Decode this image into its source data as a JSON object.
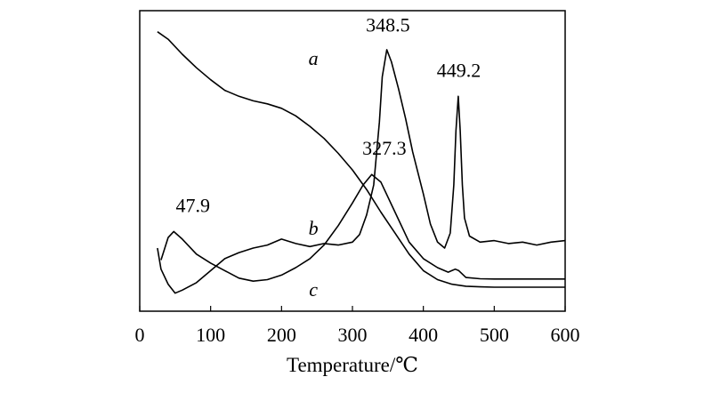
{
  "chart_data": {
    "type": "line",
    "xlabel": "Temperature/℃",
    "ylabel": "",
    "xlim": [
      0,
      600
    ],
    "x_ticks": [
      0,
      100,
      200,
      300,
      400,
      500,
      600
    ],
    "y_ticks": [],
    "grid": false,
    "legend": "none",
    "series": [
      {
        "name": "a",
        "color": "#000000",
        "points": [
          [
            25,
            0.93
          ],
          [
            40,
            0.905
          ],
          [
            60,
            0.855
          ],
          [
            80,
            0.81
          ],
          [
            100,
            0.77
          ],
          [
            120,
            0.735
          ],
          [
            140,
            0.715
          ],
          [
            160,
            0.7
          ],
          [
            180,
            0.69
          ],
          [
            200,
            0.675
          ],
          [
            220,
            0.65
          ],
          [
            240,
            0.615
          ],
          [
            260,
            0.575
          ],
          [
            280,
            0.525
          ],
          [
            300,
            0.47
          ],
          [
            320,
            0.405
          ],
          [
            340,
            0.33
          ],
          [
            360,
            0.26
          ],
          [
            380,
            0.19
          ],
          [
            400,
            0.135
          ],
          [
            420,
            0.105
          ],
          [
            440,
            0.09
          ],
          [
            460,
            0.083
          ],
          [
            480,
            0.081
          ],
          [
            500,
            0.08
          ],
          [
            600,
            0.08
          ]
        ]
      },
      {
        "name": "b",
        "color": "#000000",
        "points": [
          [
            25,
            0.21
          ],
          [
            30,
            0.14
          ],
          [
            40,
            0.09
          ],
          [
            50,
            0.06
          ],
          [
            60,
            0.07
          ],
          [
            80,
            0.095
          ],
          [
            100,
            0.135
          ],
          [
            120,
            0.175
          ],
          [
            140,
            0.195
          ],
          [
            160,
            0.21
          ],
          [
            180,
            0.22
          ],
          [
            200,
            0.24
          ],
          [
            220,
            0.225
          ],
          [
            240,
            0.215
          ],
          [
            260,
            0.225
          ],
          [
            280,
            0.22
          ],
          [
            300,
            0.23
          ],
          [
            310,
            0.255
          ],
          [
            320,
            0.32
          ],
          [
            330,
            0.42
          ],
          [
            338,
            0.63
          ],
          [
            342,
            0.78
          ],
          [
            348.5,
            0.87
          ],
          [
            355,
            0.83
          ],
          [
            365,
            0.74
          ],
          [
            375,
            0.64
          ],
          [
            385,
            0.53
          ],
          [
            400,
            0.39
          ],
          [
            410,
            0.29
          ],
          [
            420,
            0.23
          ],
          [
            430,
            0.21
          ],
          [
            438,
            0.26
          ],
          [
            443,
            0.42
          ],
          [
            446,
            0.6
          ],
          [
            449.2,
            0.715
          ],
          [
            452,
            0.6
          ],
          [
            455,
            0.42
          ],
          [
            458,
            0.31
          ],
          [
            465,
            0.25
          ],
          [
            480,
            0.23
          ],
          [
            500,
            0.235
          ],
          [
            520,
            0.225
          ],
          [
            540,
            0.23
          ],
          [
            560,
            0.22
          ],
          [
            580,
            0.23
          ],
          [
            600,
            0.235
          ]
        ]
      },
      {
        "name": "c",
        "color": "#000000",
        "points": [
          [
            30,
            0.17
          ],
          [
            40,
            0.245
          ],
          [
            47.9,
            0.265
          ],
          [
            60,
            0.24
          ],
          [
            80,
            0.19
          ],
          [
            100,
            0.16
          ],
          [
            120,
            0.135
          ],
          [
            140,
            0.11
          ],
          [
            160,
            0.1
          ],
          [
            180,
            0.105
          ],
          [
            200,
            0.12
          ],
          [
            220,
            0.145
          ],
          [
            240,
            0.175
          ],
          [
            260,
            0.22
          ],
          [
            280,
            0.285
          ],
          [
            300,
            0.36
          ],
          [
            315,
            0.42
          ],
          [
            327.3,
            0.455
          ],
          [
            340,
            0.43
          ],
          [
            360,
            0.33
          ],
          [
            380,
            0.23
          ],
          [
            400,
            0.175
          ],
          [
            420,
            0.145
          ],
          [
            435,
            0.13
          ],
          [
            445,
            0.14
          ],
          [
            450,
            0.135
          ],
          [
            460,
            0.112
          ],
          [
            480,
            0.108
          ],
          [
            500,
            0.107
          ],
          [
            600,
            0.107
          ]
        ]
      }
    ],
    "annotations": [
      {
        "id": "label-a",
        "text": "a",
        "x": 245,
        "y": 0.82,
        "kind": "curve"
      },
      {
        "id": "label-b",
        "text": "b",
        "x": 245,
        "y": 0.255,
        "kind": "curve"
      },
      {
        "id": "label-c",
        "text": "c",
        "x": 245,
        "y": 0.05,
        "kind": "curve"
      },
      {
        "id": "peak-47-9",
        "text": "47.9",
        "x": 75,
        "y": 0.33,
        "kind": "peak"
      },
      {
        "id": "peak-327-3",
        "text": "327.3",
        "x": 345,
        "y": 0.52,
        "kind": "peak"
      },
      {
        "id": "peak-348-5",
        "text": "348.5",
        "x": 350,
        "y": 0.93,
        "kind": "peak"
      },
      {
        "id": "peak-449-2",
        "text": "449.2",
        "x": 450,
        "y": 0.78,
        "kind": "peak"
      }
    ]
  }
}
